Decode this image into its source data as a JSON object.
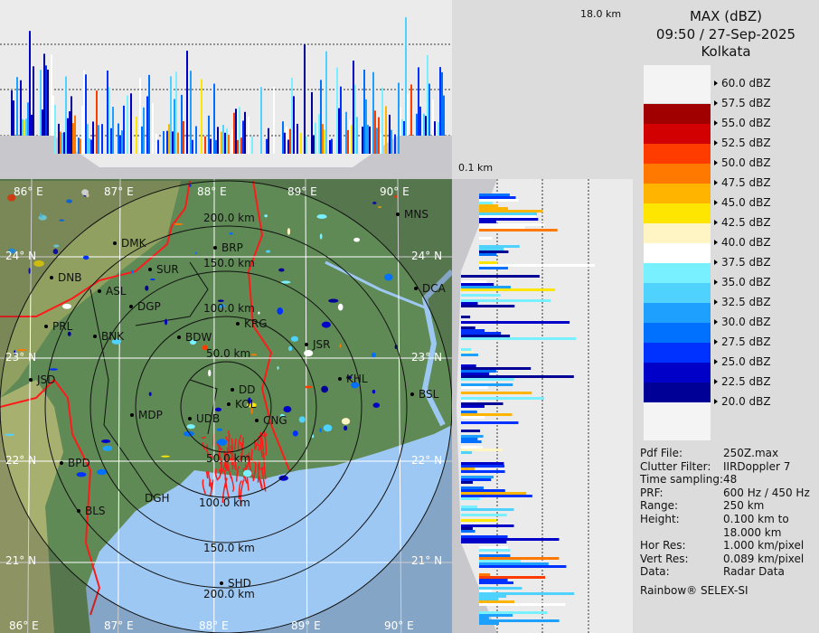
{
  "header": {
    "product": "MAX (dBZ)",
    "datetime": "09:50 / 27-Sep-2025",
    "station": "Kolkata"
  },
  "profile_labels": {
    "top_height": "18.0 km",
    "bottom_height": "0.1 km"
  },
  "legend": [
    {
      "label": "60.0 dBZ",
      "color": null
    },
    {
      "label": "57.5 dBZ",
      "color": "#a00000"
    },
    {
      "label": "55.0 dBZ",
      "color": "#d20000"
    },
    {
      "label": "52.5 dBZ",
      "color": "#ff3c00"
    },
    {
      "label": "50.0 dBZ",
      "color": "#ff7800"
    },
    {
      "label": "47.5 dBZ",
      "color": "#ffb400"
    },
    {
      "label": "45.0 dBZ",
      "color": "#ffe600"
    },
    {
      "label": "42.5 dBZ",
      "color": "#fff5c4"
    },
    {
      "label": "40.0 dBZ",
      "color": "#ffffff"
    },
    {
      "label": "37.5 dBZ",
      "color": "#78f0ff"
    },
    {
      "label": "35.0 dBZ",
      "color": "#50d2ff"
    },
    {
      "label": "32.5 dBZ",
      "color": "#1ea0ff"
    },
    {
      "label": "30.0 dBZ",
      "color": "#0070ff"
    },
    {
      "label": "27.5 dBZ",
      "color": "#0032ff"
    },
    {
      "label": "25.0 dBZ",
      "color": "#0000c8"
    },
    {
      "label": "22.5 dBZ",
      "color": "#000096"
    },
    {
      "label": "20.0 dBZ",
      "color": null
    }
  ],
  "info": [
    {
      "key": "Pdf File:",
      "value": "250Z.max"
    },
    {
      "key": "Clutter Filter:",
      "value": "IIRDoppler 7"
    },
    {
      "key": "Time sampling:",
      "value": "48"
    },
    {
      "key": "PRF:",
      "value": "600 Hz / 450 Hz"
    },
    {
      "key": "Range:",
      "value": "250 km"
    },
    {
      "key": "Height:",
      "value": "0.100 km to"
    },
    {
      "key": "",
      "value": "18.000 km"
    },
    {
      "key": "Hor Res:",
      "value": "1.000 km/pixel"
    },
    {
      "key": "Vert Res:",
      "value": "0.089 km/pixel"
    },
    {
      "key": "Data:",
      "value": "Radar Data"
    }
  ],
  "footer": "Rainbow® SELEX-SI",
  "map": {
    "longitudes": [
      "86° E",
      "87° E",
      "88° E",
      "89° E",
      "90° E"
    ],
    "latitudes": [
      "24° N",
      "23° N",
      "22° N",
      "21° N"
    ],
    "range_rings": [
      "200.0 km",
      "150.0 km",
      "100.0 km",
      "50.0 km",
      "50.0 km",
      "100.0 km",
      "150.0 km",
      "200.0 km"
    ],
    "cities": [
      "DMK",
      "SUR",
      "BRP",
      "DNB",
      "ASL",
      "DGP",
      "PRL",
      "BNK",
      "BDW",
      "KRG",
      "JSR",
      "MNS",
      "DCA",
      "KHL",
      "BSL",
      "JSD",
      "DD",
      "KOL",
      "UDB",
      "CNG",
      "MDP",
      "BPD",
      "DGH",
      "BLS",
      "SHD"
    ],
    "colors": {
      "land": "#5f8a55",
      "west_land": "#a8b070",
      "sea": "#9ec8f4",
      "border": "#ff1a1a",
      "rings": "#111111"
    }
  }
}
